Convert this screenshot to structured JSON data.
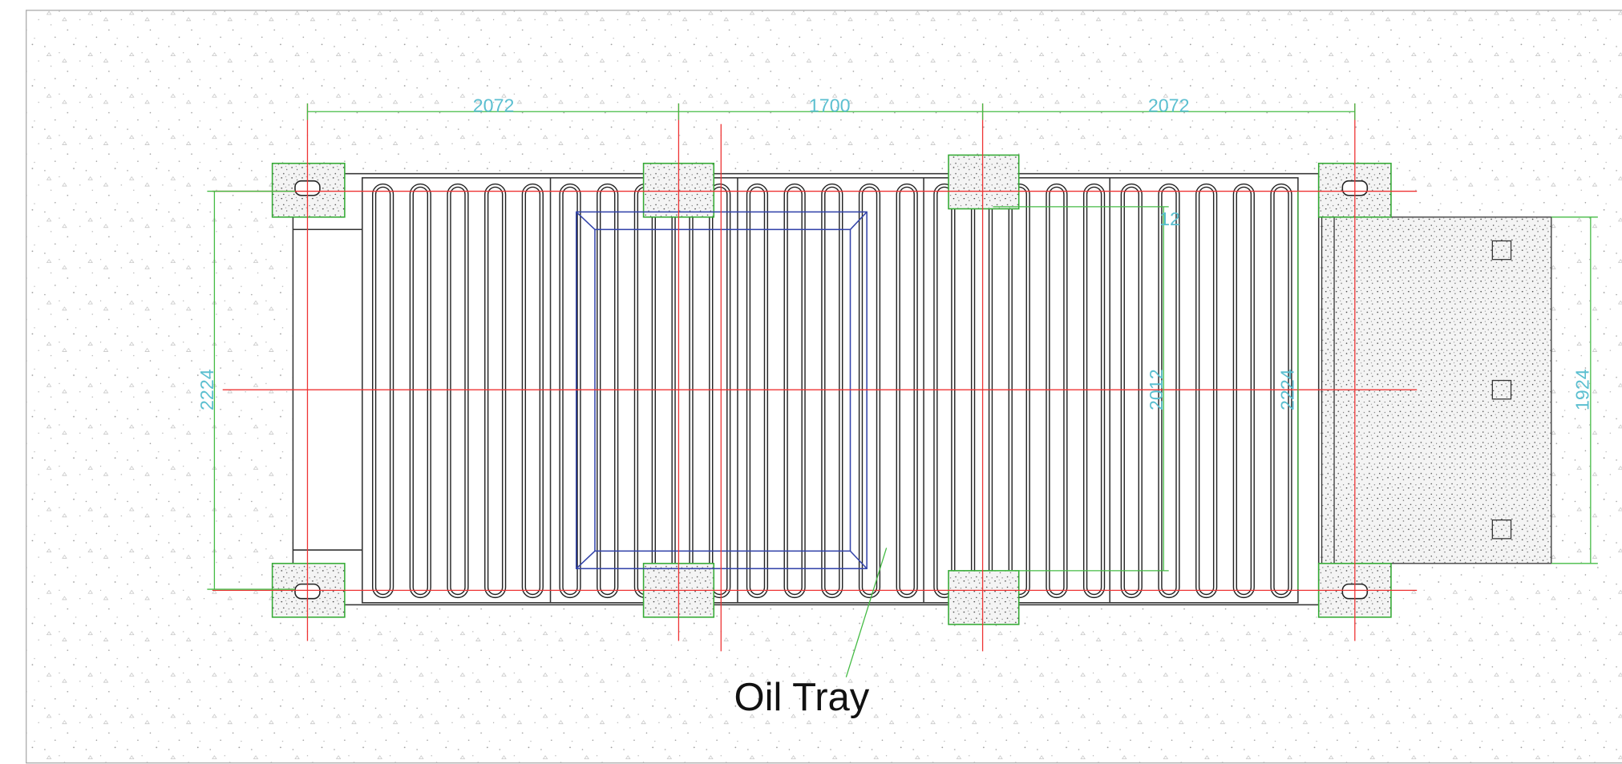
{
  "dimensions": [
    {
      "label": "2072"
    },
    {
      "label": "1700"
    },
    {
      "label": "2072"
    },
    {
      "label": "2224"
    },
    {
      "label": "12"
    },
    {
      "label": "2012"
    },
    {
      "label": "2224"
    },
    {
      "label": "1924"
    }
  ],
  "annotation": {
    "label": "Oil Tray"
  }
}
